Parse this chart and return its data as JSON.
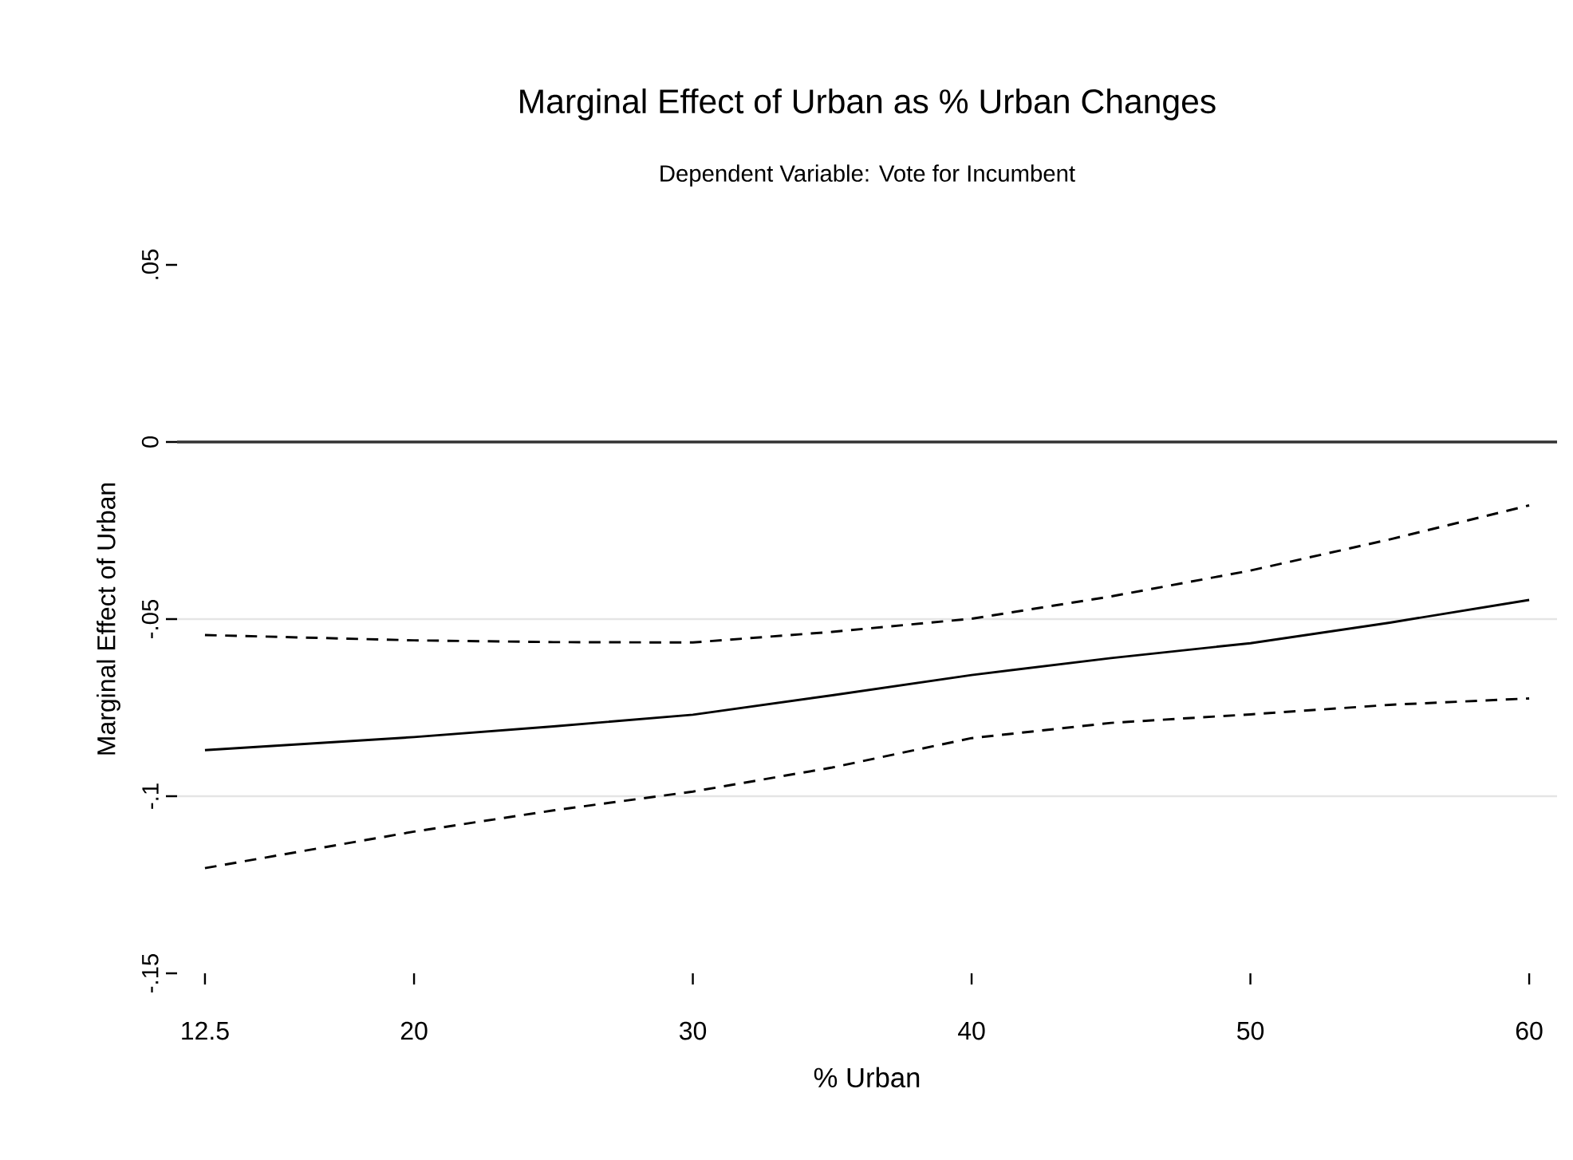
{
  "chart_data": {
    "type": "line",
    "title": "Marginal Effect of Urban as % Urban Changes",
    "subtitle": "Dependent Variable: Vote for Incumbent",
    "xlabel": "% Urban",
    "ylabel": "Marginal Effect of Urban",
    "x": [
      12.5,
      20,
      25,
      30,
      35,
      40,
      45,
      50,
      55,
      60
    ],
    "series": [
      {
        "color": "#000000",
        "line_style": "dashed",
        "values": [
          -0.0545,
          -0.056,
          -0.0565,
          -0.0566,
          -0.0536,
          -0.0499,
          -0.0436,
          -0.0363,
          -0.0275,
          -0.0179
        ]
      },
      {
        "color": "#000000",
        "line_style": "solid",
        "values": [
          -0.087,
          -0.0833,
          -0.0803,
          -0.077,
          -0.0715,
          -0.0658,
          -0.061,
          -0.0568,
          -0.051,
          -0.0446
        ]
      },
      {
        "color": "#000000",
        "line_style": "dashed",
        "values": [
          -0.1203,
          -0.11,
          -0.104,
          -0.0987,
          -0.0919,
          -0.0836,
          -0.0793,
          -0.0769,
          -0.0742,
          -0.0724
        ]
      }
    ],
    "ref_lines": [
      {
        "axis": "y",
        "value": 0,
        "color": "#333333"
      }
    ],
    "xlim": [
      11.5,
      61
    ],
    "ylim": [
      -0.15,
      0.05
    ],
    "xticks": [
      12.5,
      20,
      30,
      40,
      50,
      60
    ],
    "yticks": [
      {
        "value": -0.15,
        "label": "-.15"
      },
      {
        "value": -0.1,
        "label": "-.1"
      },
      {
        "value": -0.05,
        "label": "-.05"
      },
      0,
      {
        "value": 0.05,
        "label": ".05"
      }
    ],
    "grid": "y",
    "marker": "none"
  }
}
